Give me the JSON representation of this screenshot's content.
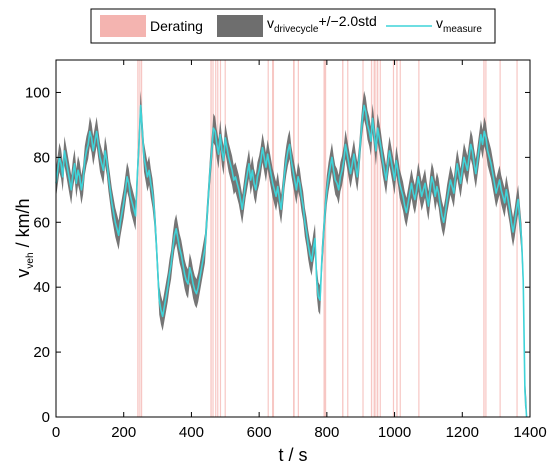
{
  "chart_data": {
    "type": "line",
    "xlabel": "t / s",
    "ylabel_main": "v",
    "ylabel_sub": "veh",
    "ylabel_rest": " / km/h",
    "xlim": [
      0,
      1400
    ],
    "ylim": [
      0,
      110
    ],
    "xticks": [
      "0",
      "200",
      "400",
      "600",
      "800",
      "1000",
      "1200",
      "1400"
    ],
    "yticks": [
      "0",
      "20",
      "40",
      "60",
      "80",
      "100"
    ],
    "grid": false,
    "legend": {
      "placement": "top",
      "entries": [
        {
          "key": "derating",
          "label": "Derating"
        },
        {
          "key": "band",
          "label_main": "v",
          "label_sub": "drivecycle",
          "label_rest": "+/−2.0std"
        },
        {
          "key": "measure",
          "label_main": "v",
          "label_sub": "measure",
          "label_rest": ""
        }
      ]
    },
    "colors": {
      "derating": "#f4b4b0",
      "band": "#6e6e6e",
      "measure": "#3fd3d8"
    },
    "band_halfwidth": 4.5,
    "series": [
      {
        "key": "measure",
        "x": [
          0,
          5,
          10,
          15,
          20,
          25,
          30,
          35,
          40,
          45,
          50,
          55,
          60,
          65,
          70,
          75,
          80,
          85,
          90,
          95,
          100,
          105,
          110,
          115,
          120,
          125,
          130,
          135,
          140,
          145,
          150,
          155,
          160,
          165,
          170,
          175,
          180,
          185,
          190,
          195,
          200,
          205,
          210,
          215,
          220,
          225,
          230,
          235,
          240,
          245,
          250,
          255,
          260,
          265,
          270,
          275,
          280,
          285,
          290,
          295,
          300,
          305,
          310,
          315,
          320,
          325,
          330,
          335,
          340,
          345,
          350,
          355,
          360,
          365,
          370,
          375,
          380,
          385,
          390,
          395,
          400,
          405,
          410,
          415,
          420,
          425,
          430,
          435,
          440,
          445,
          450,
          455,
          460,
          465,
          470,
          475,
          480,
          485,
          490,
          495,
          500,
          505,
          510,
          515,
          520,
          525,
          530,
          535,
          540,
          545,
          550,
          555,
          560,
          565,
          570,
          575,
          580,
          585,
          590,
          595,
          600,
          605,
          610,
          615,
          620,
          625,
          630,
          635,
          640,
          645,
          650,
          655,
          660,
          665,
          670,
          675,
          680,
          685,
          690,
          695,
          700,
          705,
          710,
          715,
          720,
          725,
          730,
          735,
          740,
          745,
          750,
          755,
          760,
          765,
          770,
          775,
          780,
          785,
          790,
          795,
          800,
          805,
          810,
          815,
          820,
          825,
          830,
          835,
          840,
          845,
          850,
          855,
          860,
          865,
          870,
          875,
          880,
          885,
          890,
          895,
          900,
          905,
          910,
          915,
          920,
          925,
          930,
          935,
          940,
          945,
          950,
          955,
          960,
          965,
          970,
          975,
          980,
          985,
          990,
          995,
          1000,
          1005,
          1010,
          1015,
          1020,
          1025,
          1030,
          1035,
          1040,
          1045,
          1050,
          1055,
          1060,
          1065,
          1070,
          1075,
          1080,
          1085,
          1090,
          1095,
          1100,
          1105,
          1110,
          1115,
          1120,
          1125,
          1130,
          1135,
          1140,
          1145,
          1150,
          1155,
          1160,
          1165,
          1170,
          1175,
          1180,
          1185,
          1190,
          1195,
          1200,
          1205,
          1210,
          1215,
          1220,
          1225,
          1230,
          1235,
          1240,
          1245,
          1250,
          1255,
          1260,
          1265,
          1270,
          1275,
          1280,
          1285,
          1290,
          1295,
          1300,
          1305,
          1310,
          1315,
          1320,
          1325,
          1330,
          1335,
          1340,
          1345,
          1350,
          1355,
          1360,
          1365,
          1370,
          1375,
          1380,
          1385,
          1390
        ],
        "y": [
          72,
          76,
          80,
          78,
          74,
          82,
          79,
          76,
          73,
          70,
          75,
          78,
          72,
          76,
          74,
          70,
          73,
          79,
          82,
          84,
          88,
          86,
          82,
          85,
          88,
          84,
          80,
          78,
          76,
          82,
          79,
          74,
          70,
          66,
          63,
          60,
          58,
          56,
          60,
          63,
          66,
          70,
          74,
          72,
          68,
          66,
          64,
          62,
          74,
          84,
          96,
          88,
          80,
          77,
          74,
          76,
          72,
          69,
          64,
          56,
          46,
          36,
          33,
          31,
          34,
          37,
          40,
          44,
          47,
          52,
          56,
          58,
          55,
          52,
          50,
          47,
          44,
          42,
          41,
          46,
          44,
          41,
          39,
          38,
          40,
          43,
          46,
          49,
          52,
          60,
          68,
          76,
          82,
          89,
          88,
          84,
          81,
          87,
          82,
          79,
          86,
          83,
          80,
          78,
          76,
          73,
          74,
          72,
          70,
          67,
          64,
          68,
          72,
          75,
          78,
          73,
          76,
          72,
          70,
          74,
          76,
          79,
          83,
          80,
          77,
          81,
          78,
          75,
          72,
          70,
          68,
          71,
          67,
          64,
          69,
          75,
          79,
          82,
          84,
          79,
          76,
          73,
          70,
          74,
          72,
          68,
          65,
          60,
          57,
          53,
          50,
          48,
          52,
          55,
          42,
          37,
          36,
          48,
          56,
          64,
          70,
          74,
          77,
          80,
          76,
          73,
          72,
          70,
          74,
          76,
          79,
          84,
          81,
          78,
          75,
          78,
          81,
          77,
          74,
          79,
          86,
          92,
          96,
          94,
          90,
          88,
          85,
          92,
          87,
          82,
          89,
          86,
          83,
          79,
          76,
          73,
          78,
          82,
          79,
          76,
          73,
          79,
          76,
          72,
          70,
          68,
          65,
          63,
          66,
          69,
          72,
          69,
          67,
          70,
          74,
          71,
          68,
          70,
          72,
          68,
          65,
          70,
          74,
          72,
          68,
          71,
          69,
          65,
          62,
          60,
          63,
          67,
          70,
          73,
          71,
          69,
          74,
          78,
          75,
          72,
          76,
          80,
          78,
          76,
          80,
          84,
          82,
          78,
          75,
          79,
          83,
          87,
          84,
          88,
          86,
          82,
          80,
          78,
          75,
          72,
          69,
          71,
          73,
          70,
          68,
          66,
          70,
          67,
          64,
          60,
          57,
          60,
          64,
          67,
          61,
          55,
          42,
          8,
          0
        ]
      }
    ],
    "derating_intervals": [
      [
        240,
        244
      ],
      [
        246,
        249
      ],
      [
        251,
        253
      ],
      [
        456,
        460
      ],
      [
        462,
        465
      ],
      [
        470,
        473
      ],
      [
        476,
        479
      ],
      [
        484,
        487
      ],
      [
        498,
        501
      ],
      [
        625,
        627
      ],
      [
        638,
        644
      ],
      [
        700,
        705
      ],
      [
        714,
        717
      ],
      [
        790,
        798
      ],
      [
        845,
        849
      ],
      [
        860,
        862
      ],
      [
        905,
        908
      ],
      [
        930,
        934
      ],
      [
        938,
        944
      ],
      [
        947,
        952
      ],
      [
        956,
        958
      ],
      [
        995,
        998
      ],
      [
        1005,
        1009
      ],
      [
        1015,
        1018
      ],
      [
        1070,
        1072
      ],
      [
        1262,
        1266
      ],
      [
        1268,
        1271
      ],
      [
        1310,
        1313
      ],
      [
        1360,
        1363
      ]
    ]
  }
}
